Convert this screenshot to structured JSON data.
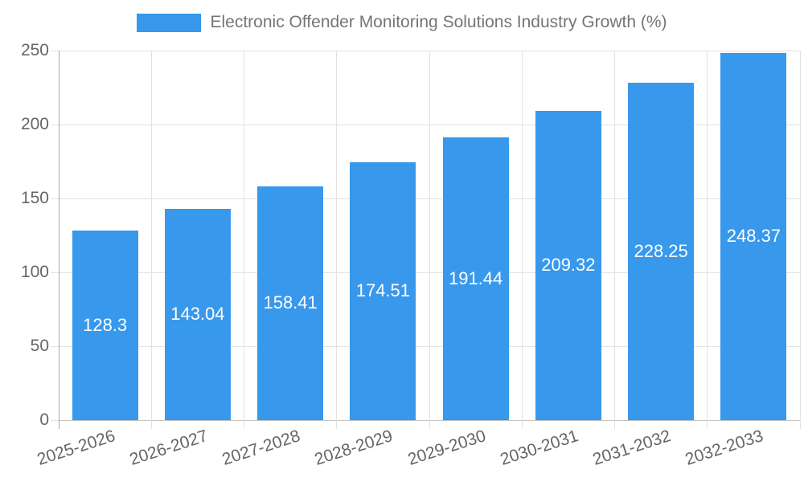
{
  "legend": {
    "label": "Electronic Offender Monitoring Solutions Industry Growth (%)"
  },
  "colors": {
    "bar": "#3898EC",
    "grid": "#E2E2E2",
    "axis_y": "#A8A8A8",
    "axis_x": "#C4C4C4",
    "tick_label": "#666666",
    "legend_text": "#757575",
    "value_label": "#FFFFFF",
    "background": "#FFFFFF"
  },
  "chart_data": {
    "type": "bar",
    "title": "Electronic Offender Monitoring Solutions Industry Growth (%)",
    "series_name": "Electronic Offender Monitoring Solutions Industry Growth (%)",
    "categories": [
      "2025-2026",
      "2026-2027",
      "2027-2028",
      "2028-2029",
      "2029-2030",
      "2030-2031",
      "2031-2032",
      "2032-2033"
    ],
    "values": [
      128.3,
      143.04,
      158.41,
      174.51,
      191.44,
      209.32,
      228.25,
      248.37
    ],
    "xlabel": "",
    "ylabel": "",
    "ylim": [
      0,
      250
    ],
    "yticks": [
      0,
      50,
      100,
      150,
      200,
      250
    ],
    "grid": true,
    "grid_vertical": true,
    "legend_position": "top",
    "value_labels": "inside-center",
    "x_label_rotation_deg": -18
  }
}
